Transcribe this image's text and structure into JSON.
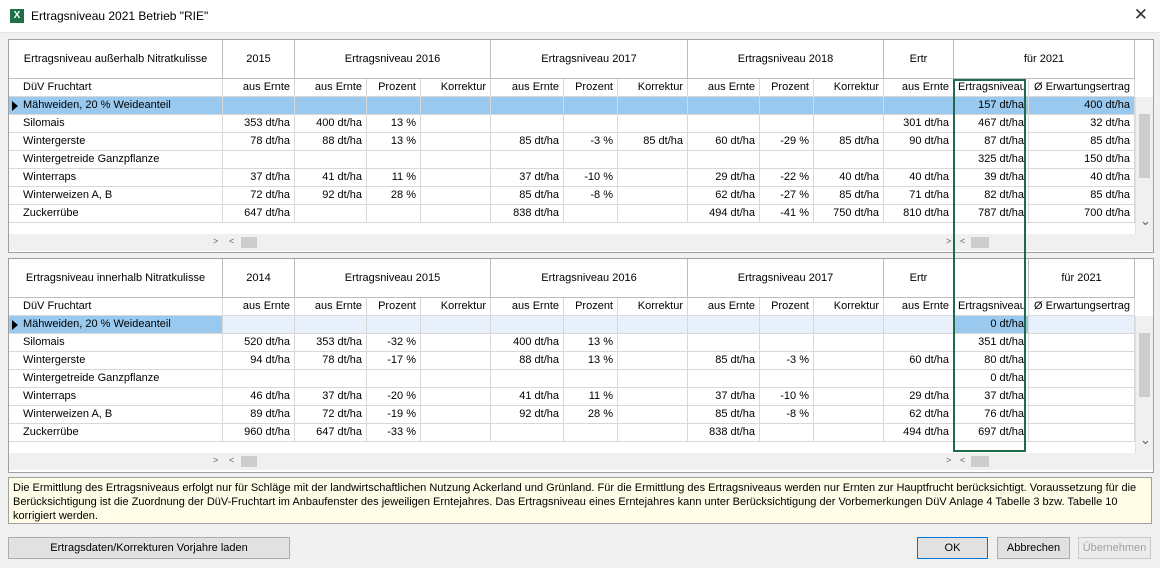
{
  "window": {
    "title": "Ertragsniveau 2021  Betrieb \"RIE\"",
    "close_glyph": "✕",
    "app_icon_glyph": "X"
  },
  "top_grid": {
    "groups": [
      "Ertragsniveau außerhalb Nitratkulisse",
      "2015",
      "Ertragsniveau 2016",
      "Ertragsniveau 2017",
      "Ertragsniveau 2018",
      "Ertr",
      "für 2021"
    ],
    "columns": [
      "DüV Fruchtart",
      "aus Ernte",
      "aus Ernte",
      "Prozent",
      "Korrektur",
      "aus Ernte",
      "Prozent",
      "Korrektur",
      "aus Ernte",
      "Prozent",
      "Korrektur",
      "aus Ernte",
      "Ertragsniveau",
      "Ø Erwartungsertrag"
    ],
    "rows": [
      [
        "Mähweiden, 20 % Weideanteil",
        "",
        "",
        "",
        "",
        "",
        "",
        "",
        "",
        "",
        "",
        "",
        "157 dt/ha",
        "400 dt/ha"
      ],
      [
        "Silomais",
        "353 dt/ha",
        "400 dt/ha",
        "13 %",
        "",
        "",
        "",
        "",
        "",
        "",
        "",
        "301 dt/ha",
        "467 dt/ha",
        "32 dt/ha"
      ],
      [
        "Wintergerste",
        "78 dt/ha",
        "88 dt/ha",
        "13 %",
        "",
        "85 dt/ha",
        "-3 %",
        "85 dt/ha",
        "60 dt/ha",
        "-29 %",
        "85 dt/ha",
        "90 dt/ha",
        "87 dt/ha",
        "85 dt/ha"
      ],
      [
        "Wintergetreide Ganzpflanze",
        "",
        "",
        "",
        "",
        "",
        "",
        "",
        "",
        "",
        "",
        "",
        "325 dt/ha",
        "150 dt/ha"
      ],
      [
        "Winterraps",
        "37 dt/ha",
        "41 dt/ha",
        "11 %",
        "",
        "37 dt/ha",
        "-10 %",
        "",
        "29 dt/ha",
        "-22 %",
        "40 dt/ha",
        "40 dt/ha",
        "39 dt/ha",
        "40 dt/ha"
      ],
      [
        "Winterweizen A, B",
        "72 dt/ha",
        "92 dt/ha",
        "28 %",
        "",
        "85 dt/ha",
        "-8 %",
        "",
        "62 dt/ha",
        "-27 %",
        "85 dt/ha",
        "71 dt/ha",
        "82 dt/ha",
        "85 dt/ha"
      ],
      [
        "Zuckerrübe",
        "647 dt/ha",
        "",
        "",
        "",
        "838 dt/ha",
        "",
        "",
        "494 dt/ha",
        "-41 %",
        "750 dt/ha",
        "810 dt/ha",
        "787 dt/ha",
        "700 dt/ha"
      ]
    ]
  },
  "bottom_grid": {
    "groups": [
      "Ertragsniveau innerhalb Nitratkulisse",
      "2014",
      "Ertragsniveau 2015",
      "Ertragsniveau 2016",
      "Ertragsniveau 2017",
      "Ertr",
      "",
      "für 2021"
    ],
    "columns": [
      "DüV Fruchtart",
      "aus Ernte",
      "aus Ernte",
      "Prozent",
      "Korrektur",
      "aus Ernte",
      "Prozent",
      "Korrektur",
      "aus Ernte",
      "Prozent",
      "Korrektur",
      "aus Ernte",
      "Ertragsniveau",
      "Ø Erwartungsertrag"
    ],
    "rows": [
      [
        "Mähweiden, 20 % Weideanteil",
        "",
        "",
        "",
        "",
        "",
        "",
        "",
        "",
        "",
        "",
        "",
        "0 dt/ha",
        ""
      ],
      [
        "Silomais",
        "520 dt/ha",
        "353 dt/ha",
        "-32 %",
        "",
        "400 dt/ha",
        "13 %",
        "",
        "",
        "",
        "",
        "",
        "351 dt/ha",
        ""
      ],
      [
        "Wintergerste",
        "94 dt/ha",
        "78 dt/ha",
        "-17 %",
        "",
        "88 dt/ha",
        "13 %",
        "",
        "85 dt/ha",
        "-3 %",
        "",
        "60 dt/ha",
        "80 dt/ha",
        ""
      ],
      [
        "Wintergetreide Ganzpflanze",
        "",
        "",
        "",
        "",
        "",
        "",
        "",
        "",
        "",
        "",
        "",
        "0 dt/ha",
        ""
      ],
      [
        "Winterraps",
        "46 dt/ha",
        "37 dt/ha",
        "-20 %",
        "",
        "41 dt/ha",
        "11 %",
        "",
        "37 dt/ha",
        "-10 %",
        "",
        "29 dt/ha",
        "37 dt/ha",
        ""
      ],
      [
        "Winterweizen A, B",
        "89 dt/ha",
        "72 dt/ha",
        "-19 %",
        "",
        "92 dt/ha",
        "28 %",
        "",
        "85 dt/ha",
        "-8 %",
        "",
        "62 dt/ha",
        "76 dt/ha",
        ""
      ],
      [
        "Zuckerrübe",
        "960 dt/ha",
        "647 dt/ha",
        "-33 %",
        "",
        "",
        "",
        "",
        "838 dt/ha",
        "",
        "",
        "494 dt/ha",
        "697 dt/ha",
        ""
      ]
    ]
  },
  "note": "Die Ermittlung des Ertragsniveaus erfolgt nur für Schläge mit der landwirtschaftlichen Nutzung Ackerland und Grünland. Für die Ermittlung des Ertragsniveaus werden nur Ernten zur Hauptfrucht berücksichtigt. Voraussetzung für die Berücksichtigung ist die Zuordnung der DüV-Fruchtart im Anbaufenster des jeweiligen Erntejahres. Das Ertragsniveau eines Erntejahres kann unter Berücksichtigung der Vorbemerkungen DüV Anlage 4 Tabelle 3 bzw. Tabelle 10 korrigiert werden.",
  "buttons": {
    "load": "Ertragsdaten/Korrekturen Vorjahre laden",
    "ok": "OK",
    "cancel": "Abbrechen",
    "apply": "Übernehmen"
  },
  "colors": {
    "selection": "#99c9ef",
    "highlight_frame": "#1e6b4a",
    "note_bg": "#fffde7"
  }
}
